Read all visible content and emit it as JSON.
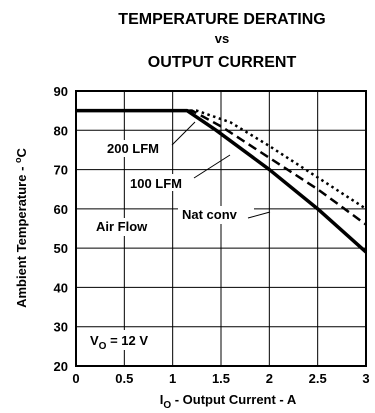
{
  "chart_data": {
    "type": "line",
    "title_lines": [
      "TEMPERATURE DERATING",
      "vs",
      "OUTPUT CURRENT"
    ],
    "xlabel": {
      "prefix": "I",
      "sub": "O",
      "rest": " - Output Current - A"
    },
    "ylabel": "Ambient Temperature - °C",
    "ylabel_parts": {
      "text": "Ambient Temperature - ",
      "unit": "C"
    },
    "xlim": [
      0,
      3
    ],
    "ylim": [
      20,
      90
    ],
    "xticks": [
      0,
      0.5,
      1,
      1.5,
      2,
      2.5,
      3
    ],
    "xtick_labels": [
      "0",
      "0.5",
      "1",
      "1.5",
      "2",
      "2.5",
      "3"
    ],
    "yticks": [
      20,
      30,
      40,
      50,
      60,
      70,
      80,
      90
    ],
    "ytick_labels": [
      "20",
      "30",
      "40",
      "50",
      "60",
      "70",
      "80",
      "90"
    ],
    "grid": true,
    "series": [
      {
        "name": "Nat conv",
        "style": "solid",
        "x": [
          0,
          1.15,
          1.45,
          2.0,
          2.5,
          3.0
        ],
        "y": [
          85,
          85,
          80,
          70,
          60,
          49
        ]
      },
      {
        "name": "100 LFM",
        "style": "dashed",
        "x": [
          0,
          1.2,
          1.5,
          2.0,
          2.5,
          3.0
        ],
        "y": [
          85,
          85,
          81,
          73,
          65,
          56
        ]
      },
      {
        "name": "200 LFM",
        "style": "dotted",
        "x": [
          0,
          1.25,
          1.6,
          2.0,
          2.5,
          3.0
        ],
        "y": [
          85,
          85,
          82,
          76,
          68,
          60
        ]
      }
    ],
    "annotations": {
      "lfm200": "200 LFM",
      "lfm100": "100 LFM",
      "airflow": "Air Flow",
      "natconv": "Nat conv",
      "vo": {
        "prefix": "V",
        "sub": "O",
        "rest": " = 12 V"
      }
    }
  }
}
